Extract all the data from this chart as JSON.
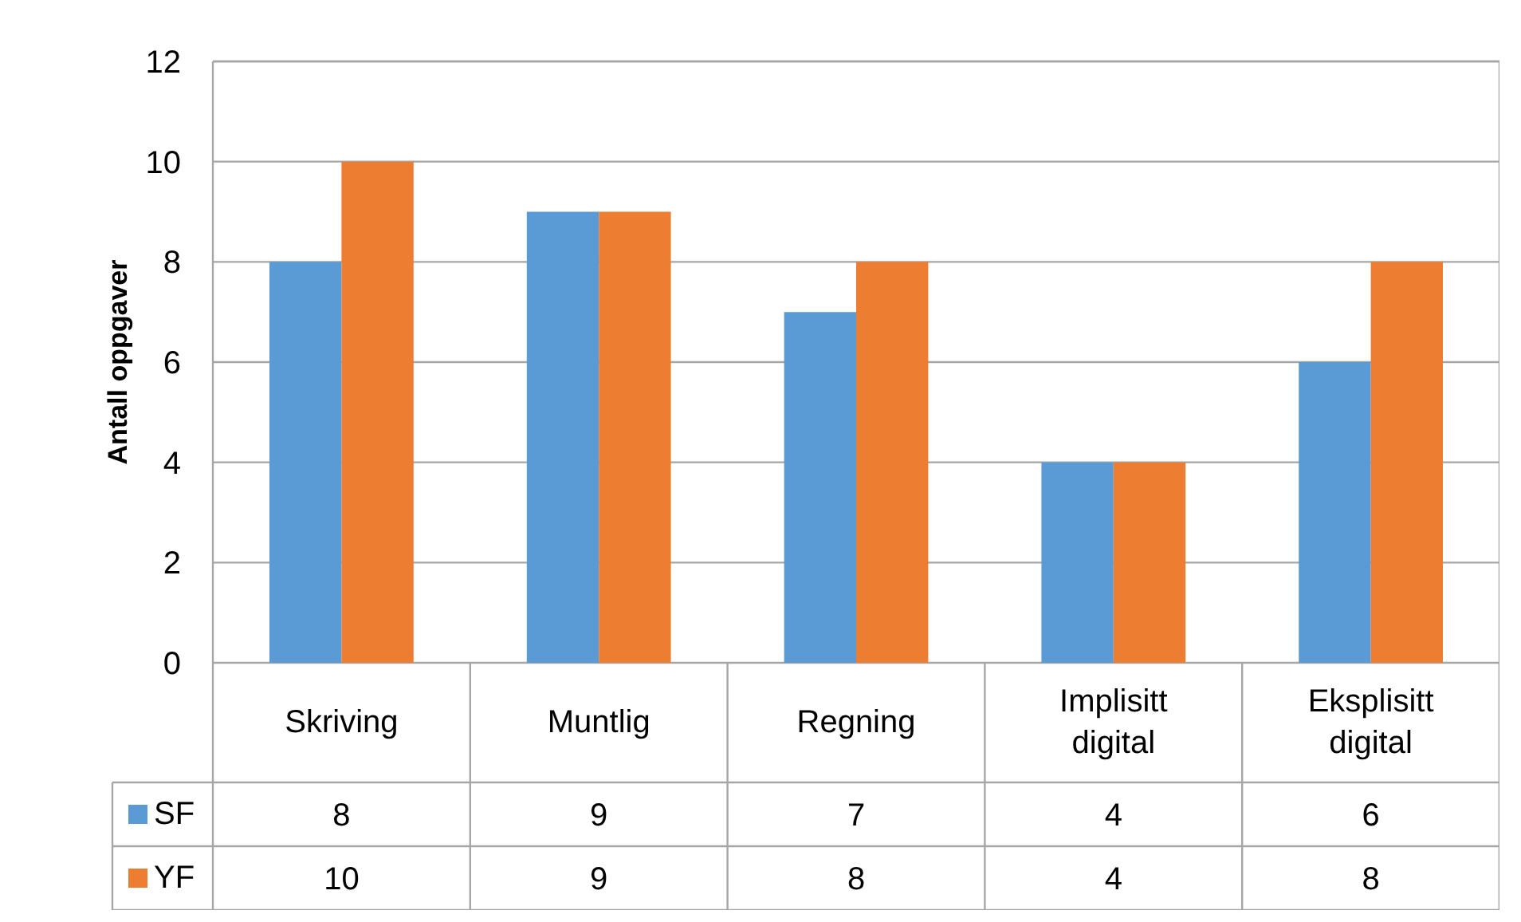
{
  "chart_data": {
    "type": "bar",
    "ylabel": "Antall oppgaver",
    "categories": [
      "Skriving",
      "Muntlig",
      "Regning",
      "Implisitt digital",
      "Eksplisitt digital"
    ],
    "series": [
      {
        "name": "SF",
        "color": "#5b9bd5",
        "values": [
          8,
          9,
          7,
          4,
          6
        ]
      },
      {
        "name": "YF",
        "color": "#ed7d31",
        "values": [
          10,
          9,
          8,
          4,
          8
        ]
      }
    ],
    "ylim": [
      0,
      12
    ],
    "yticks": [
      0,
      2,
      4,
      6,
      8,
      10,
      12
    ],
    "grid": "y",
    "legend": "bottom left",
    "data_labels": true
  }
}
